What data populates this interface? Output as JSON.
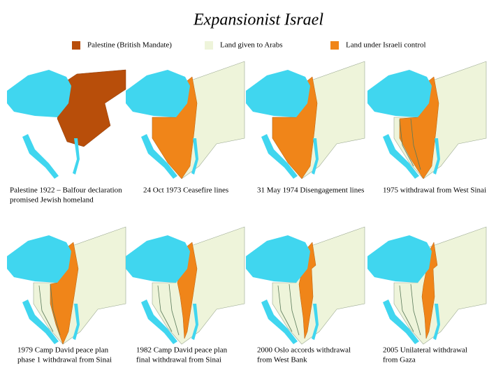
{
  "title": "Expansionist Israel",
  "legend": [
    {
      "label": "Palestine (British Mandate)",
      "color": "#b84e0a"
    },
    {
      "label": "Land given to Arabs",
      "color": "#eef4da"
    },
    {
      "label": "Land under Israeli control",
      "color": "#f08519"
    }
  ],
  "panels": [
    {
      "caption": [
        "Palestine 1922 – Balfour declaration",
        "promised Jewish homeland"
      ]
    },
    {
      "caption": [
        "24 Oct 1973 Ceasefire lines"
      ]
    },
    {
      "caption": [
        "31 May 1974 Disengagement  lines"
      ]
    },
    {
      "caption": [
        "1975 withdrawal from West Sinai"
      ]
    },
    {
      "caption": [
        "1979 Camp David peace plan",
        "phase 1 withdrawal from Sinai"
      ]
    },
    {
      "caption": [
        "1982 Camp David peace plan",
        "final withdrawal from Sinai"
      ]
    },
    {
      "caption": [
        "2000 Oslo accords withdrawal",
        "from West Bank"
      ]
    },
    {
      "caption": [
        "2005 Unilateral withdrawal",
        "from Gaza"
      ]
    }
  ]
}
